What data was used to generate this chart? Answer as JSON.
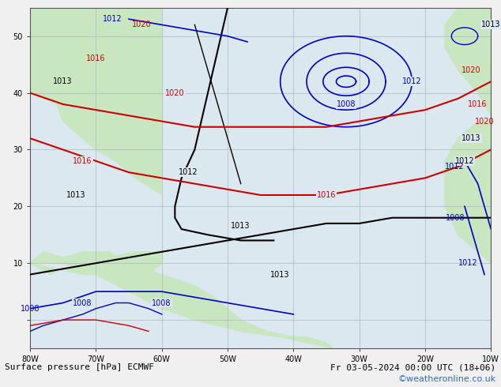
{
  "title_bottom": "Surface pressure [hPa] ECMWF",
  "date_str": "Fr 03-05-2024 00:00 UTC (18+06)",
  "credit": "©weatheronline.co.uk",
  "bg_ocean": "#dce8f0",
  "bg_land": "#c8e6c0",
  "grid_color": "#b0b8c0",
  "border_color": "#888888",
  "text_color_black": "#000000",
  "text_color_blue": "#0000cc",
  "text_color_red": "#cc0000",
  "text_color_credit": "#3366cc",
  "font_size_label": 8,
  "font_size_tick": 7,
  "font_size_credit": 8,
  "lon_min": -80,
  "lon_max": -10,
  "lat_min": -5,
  "lat_max": 55,
  "lon_ticks": [
    -80,
    -70,
    -60,
    -50,
    -40,
    -30,
    -20,
    -10
  ],
  "lat_ticks": [
    0,
    10,
    20,
    30,
    40,
    50
  ],
  "lon_labels": [
    "80W",
    "70W",
    "60W",
    "50W",
    "40W",
    "30W",
    "20W",
    "10W"
  ],
  "lat_labels": [
    "",
    "10",
    "20",
    "30",
    "40",
    "50"
  ]
}
